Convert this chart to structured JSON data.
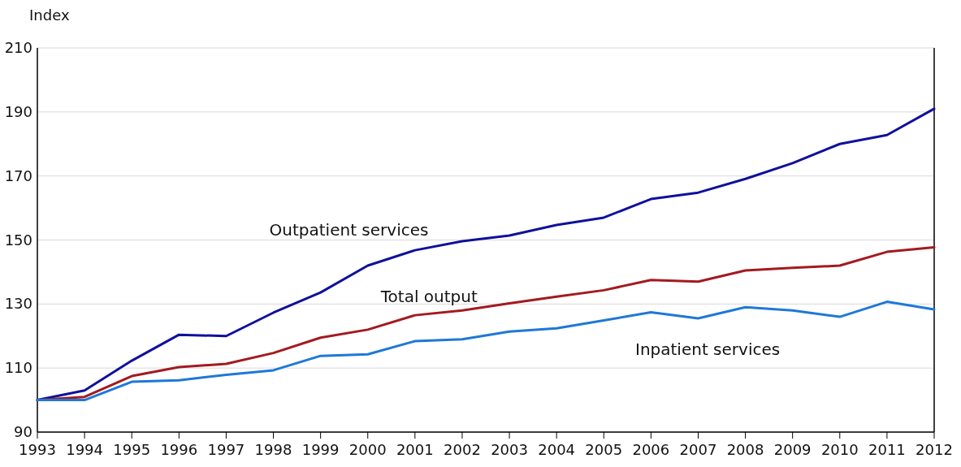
{
  "chart_data": {
    "type": "line",
    "ylabel": "Index",
    "x": [
      1993,
      1994,
      1995,
      1996,
      1997,
      1998,
      1999,
      2000,
      2001,
      2002,
      2003,
      2004,
      2005,
      2006,
      2007,
      2008,
      2009,
      2010,
      2011,
      2012
    ],
    "xlim": [
      1993,
      2012
    ],
    "xticks": [
      1993,
      1994,
      1995,
      1996,
      1997,
      1998,
      1999,
      2000,
      2001,
      2002,
      2003,
      2004,
      2005,
      2006,
      2007,
      2008,
      2009,
      2010,
      2011,
      2012
    ],
    "ylim": [
      90,
      210
    ],
    "yticks": [
      90,
      110,
      130,
      150,
      170,
      190,
      210
    ],
    "grid": "y",
    "legend": false,
    "marker": "none",
    "line_style": "solid",
    "series": [
      {
        "name": "Outpatient services",
        "color": "#10109c",
        "values": [
          100,
          103,
          112.3,
          120.4,
          120,
          127.3,
          133.6,
          142,
          146.8,
          149.6,
          151.4,
          154.7,
          157,
          162.8,
          164.8,
          169.1,
          174,
          180,
          182.8,
          191
        ]
      },
      {
        "name": "Total output",
        "color": "#a31a1f",
        "values": [
          100,
          101,
          107.5,
          110.3,
          111.3,
          114.7,
          119.5,
          122,
          126.5,
          128,
          130.2,
          132.3,
          134.3,
          137.5,
          137,
          140.5,
          141.3,
          142,
          146.3,
          147.7
        ]
      },
      {
        "name": "Inpatient services",
        "color": "#1e78d8",
        "values": [
          100,
          100,
          105.7,
          106.2,
          107.9,
          109.3,
          113.8,
          114.3,
          118.4,
          119,
          121.4,
          122.4,
          124.9,
          127.4,
          125.5,
          129,
          128,
          126,
          130.7,
          128.3
        ]
      }
    ]
  }
}
